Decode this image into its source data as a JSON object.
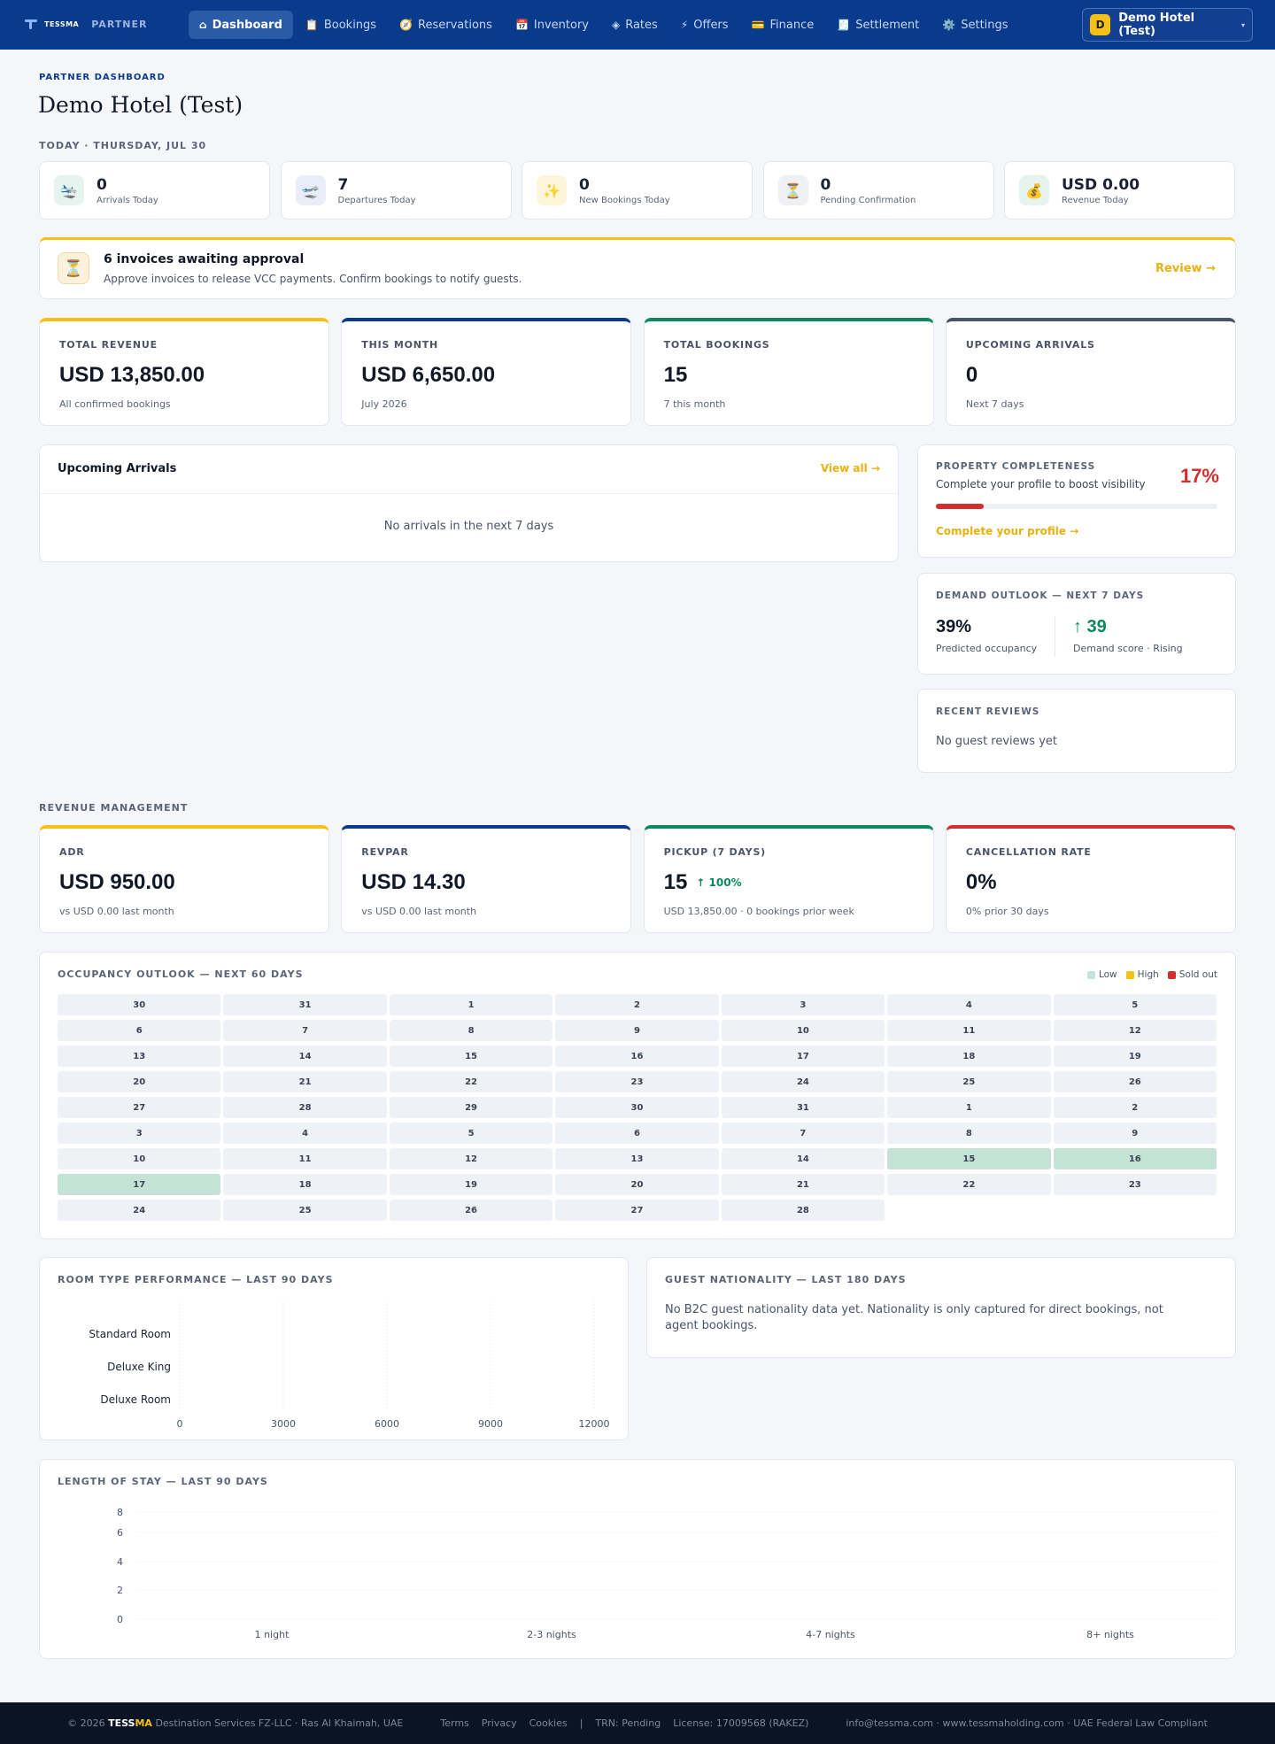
{
  "nav": {
    "brand": "TESSMA",
    "partner_label": "PARTNER",
    "items": [
      {
        "icon": "⌂",
        "label": "Dashboard"
      },
      {
        "icon": "📋",
        "label": "Bookings"
      },
      {
        "icon": "🧭",
        "label": "Reservations"
      },
      {
        "icon": "📅",
        "label": "Inventory"
      },
      {
        "icon": "◈",
        "label": "Rates"
      },
      {
        "icon": "⚡",
        "label": "Offers"
      },
      {
        "icon": "💳",
        "label": "Finance"
      },
      {
        "icon": "🧾",
        "label": "Settlement"
      },
      {
        "icon": "⚙️",
        "label": "Settings"
      }
    ],
    "account": {
      "initial": "D",
      "name": "Demo Hotel (Test)",
      "caret": "▾"
    }
  },
  "header": {
    "kicker": "PARTNER DASHBOARD",
    "title": "Demo Hotel (Test)"
  },
  "today": {
    "label": "TODAY · THURSDAY, JUL 30",
    "cards": [
      {
        "icon": "🛬",
        "value": "0",
        "label": "Arrivals Today",
        "bg": "#e6f4ef"
      },
      {
        "icon": "🛫",
        "value": "7",
        "label": "Departures Today",
        "bg": "#e8edf8"
      },
      {
        "icon": "✨",
        "value": "0",
        "label": "New Bookings Today",
        "bg": "#fdf6dc"
      },
      {
        "icon": "⏳",
        "value": "0",
        "label": "Pending Confirmation",
        "bg": "#eef0f4"
      },
      {
        "icon": "💰",
        "value": "USD 0.00",
        "label": "Revenue Today",
        "bg": "#e6f4ef"
      }
    ]
  },
  "alert": {
    "icon": "⏳",
    "title": "6 invoices awaiting approval",
    "text": "Approve invoices to release VCC payments. Confirm bookings to notify guests.",
    "action": "Review →"
  },
  "stats": [
    {
      "label": "TOTAL REVENUE",
      "value": "USD 13,850.00",
      "sub": "All confirmed bookings",
      "color": "#f6c015"
    },
    {
      "label": "THIS MONTH",
      "value": "USD 6,650.00",
      "sub": "July 2026",
      "color": "#0a3a8c"
    },
    {
      "label": "TOTAL BOOKINGS",
      "value": "15",
      "sub": "7 this month",
      "color": "#0a8a5c"
    },
    {
      "label": "UPCOMING ARRIVALS",
      "value": "0",
      "sub": "Next 7 days",
      "color": "#4a5468"
    }
  ],
  "arrivals": {
    "title": "Upcoming Arrivals",
    "view_all": "View all →",
    "empty": "No arrivals in the next 7 days"
  },
  "completeness": {
    "label": "PROPERTY COMPLETENESS",
    "sub": "Complete your profile to boost visibility",
    "percent": "17%",
    "fraction": 0.17,
    "link": "Complete your profile →"
  },
  "demand": {
    "label": "DEMAND OUTLOOK — NEXT 7 DAYS",
    "occupancy": "39%",
    "occupancy_label": "Predicted occupancy",
    "score": "↑ 39",
    "score_label": "Demand score · Rising"
  },
  "reviews": {
    "label": "RECENT REVIEWS",
    "empty": "No guest reviews yet"
  },
  "revenue_mgmt": {
    "label": "REVENUE MANAGEMENT",
    "cards": [
      {
        "label": "ADR",
        "value": "USD 950.00",
        "sub": "vs USD 0.00 last month",
        "color": "#f6c015",
        "trend": ""
      },
      {
        "label": "REVPAR",
        "value": "USD 14.30",
        "sub": "vs USD 0.00 last month",
        "color": "#0a3a8c",
        "trend": ""
      },
      {
        "label": "PICKUP (7 DAYS)",
        "value": "15",
        "sub": "USD 13,850.00 · 0 bookings prior week",
        "color": "#0a8a5c",
        "trend": "↑ 100%"
      },
      {
        "label": "CANCELLATION RATE",
        "value": "0%",
        "sub": "0% prior 30 days",
        "color": "#d32f2f",
        "trend": ""
      }
    ]
  },
  "occupancy": {
    "label": "OCCUPANCY OUTLOOK — NEXT 60 DAYS",
    "legend": [
      {
        "label": "Low",
        "color": "#c4e3d6"
      },
      {
        "label": "High",
        "color": "#f6c015"
      },
      {
        "label": "Sold out",
        "color": "#d32f2f"
      }
    ],
    "days": [
      {
        "d": "30",
        "s": ""
      },
      {
        "d": "31",
        "s": ""
      },
      {
        "d": "1",
        "s": ""
      },
      {
        "d": "2",
        "s": ""
      },
      {
        "d": "3",
        "s": ""
      },
      {
        "d": "4",
        "s": ""
      },
      {
        "d": "5",
        "s": ""
      },
      {
        "d": "6",
        "s": ""
      },
      {
        "d": "7",
        "s": ""
      },
      {
        "d": "8",
        "s": ""
      },
      {
        "d": "9",
        "s": ""
      },
      {
        "d": "10",
        "s": ""
      },
      {
        "d": "11",
        "s": ""
      },
      {
        "d": "12",
        "s": ""
      },
      {
        "d": "13",
        "s": ""
      },
      {
        "d": "14",
        "s": ""
      },
      {
        "d": "15",
        "s": ""
      },
      {
        "d": "16",
        "s": ""
      },
      {
        "d": "17",
        "s": ""
      },
      {
        "d": "18",
        "s": ""
      },
      {
        "d": "19",
        "s": ""
      },
      {
        "d": "20",
        "s": ""
      },
      {
        "d": "21",
        "s": ""
      },
      {
        "d": "22",
        "s": ""
      },
      {
        "d": "23",
        "s": ""
      },
      {
        "d": "24",
        "s": ""
      },
      {
        "d": "25",
        "s": ""
      },
      {
        "d": "26",
        "s": ""
      },
      {
        "d": "27",
        "s": ""
      },
      {
        "d": "28",
        "s": ""
      },
      {
        "d": "29",
        "s": ""
      },
      {
        "d": "30",
        "s": ""
      },
      {
        "d": "31",
        "s": ""
      },
      {
        "d": "1",
        "s": ""
      },
      {
        "d": "2",
        "s": ""
      },
      {
        "d": "3",
        "s": ""
      },
      {
        "d": "4",
        "s": ""
      },
      {
        "d": "5",
        "s": ""
      },
      {
        "d": "6",
        "s": ""
      },
      {
        "d": "7",
        "s": ""
      },
      {
        "d": "8",
        "s": ""
      },
      {
        "d": "9",
        "s": ""
      },
      {
        "d": "10",
        "s": ""
      },
      {
        "d": "11",
        "s": ""
      },
      {
        "d": "12",
        "s": ""
      },
      {
        "d": "13",
        "s": ""
      },
      {
        "d": "14",
        "s": ""
      },
      {
        "d": "15",
        "s": "low"
      },
      {
        "d": "16",
        "s": "low"
      },
      {
        "d": "17",
        "s": "low"
      },
      {
        "d": "18",
        "s": ""
      },
      {
        "d": "19",
        "s": ""
      },
      {
        "d": "20",
        "s": ""
      },
      {
        "d": "21",
        "s": ""
      },
      {
        "d": "22",
        "s": ""
      },
      {
        "d": "23",
        "s": ""
      },
      {
        "d": "24",
        "s": ""
      },
      {
        "d": "25",
        "s": ""
      },
      {
        "d": "26",
        "s": ""
      },
      {
        "d": "27",
        "s": ""
      },
      {
        "d": "28",
        "s": ""
      }
    ]
  },
  "room_perf": {
    "label": "ROOM TYPE PERFORMANCE — LAST 90 DAYS"
  },
  "nationality": {
    "label": "GUEST NATIONALITY — LAST 180 DAYS",
    "empty": "No B2C guest nationality data yet. Nationality is only captured for direct bookings, not agent bookings."
  },
  "los": {
    "label": "LENGTH OF STAY — LAST 90 DAYS"
  },
  "chart_data": [
    {
      "type": "bar",
      "orientation": "horizontal",
      "categories": [
        "Standard Room",
        "Deluxe King",
        "Deluxe Room"
      ],
      "values": [
        0,
        0,
        0
      ],
      "xlim": [
        0,
        12000
      ],
      "xticks": [
        "0",
        "3000",
        "6000",
        "9000",
        "12000"
      ],
      "grid": true
    },
    {
      "type": "bar",
      "categories": [
        "1 night",
        "2-3 nights",
        "4-7 nights",
        "8+ nights"
      ],
      "values": [
        0,
        0,
        0,
        0
      ],
      "ylim": [
        0,
        8
      ],
      "yticks": [
        "0",
        "2",
        "4",
        "6",
        "8"
      ],
      "grid": true
    }
  ],
  "footer": {
    "copyright": "© 2026",
    "brand_a": "TESS",
    "brand_b": "MA",
    "company": "Destination Services FZ-LLC · Ras Al Khaimah, UAE",
    "links": [
      "Terms",
      "Privacy",
      "Cookies"
    ],
    "sep": "|",
    "trn": "TRN: Pending",
    "license": "License: 17009568 (RAKEZ)",
    "contact": "info@tessma.com · www.tessmaholding.com · UAE Federal Law Compliant"
  }
}
